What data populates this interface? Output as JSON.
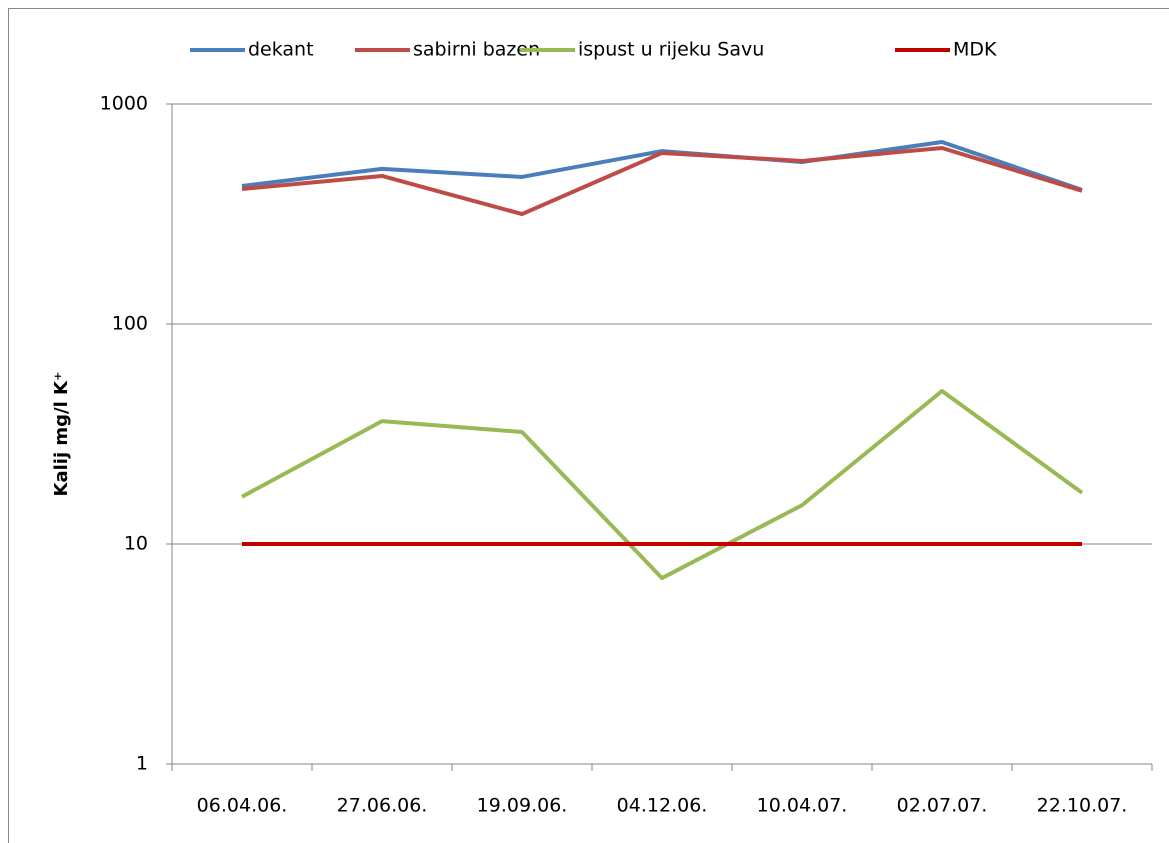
{
  "chart_data": {
    "type": "line",
    "y_label": "Kalij  mg/l K⁺",
    "categories": [
      "06.04.06.",
      "27.06.06.",
      "19.09.06.",
      "04.12.06.",
      "10.04.07.",
      "02.07.07.",
      "22.10.07."
    ],
    "series": [
      {
        "name": "dekant",
        "color": "#4a7ebb",
        "values": [
          424,
          507,
          466,
          611,
          545,
          672,
          407
        ]
      },
      {
        "name": "sabirni bazen",
        "color": "#be4b48",
        "values": [
          411,
          471,
          316,
          599,
          551,
          631,
          403
        ]
      },
      {
        "name": "ispust u rijeku Savu",
        "color": "#98b954",
        "values": [
          16.4,
          36.2,
          32.3,
          7.0,
          15.0,
          49.6,
          17.1
        ]
      },
      {
        "name": "MDK",
        "color": "#c00000",
        "values": [
          10,
          10,
          10,
          10,
          10,
          10,
          10
        ]
      }
    ],
    "ylim": [
      1,
      1000
    ],
    "yticks": [
      1,
      10,
      100,
      1000
    ],
    "log_scale": true,
    "grid": true,
    "legend": "top"
  }
}
